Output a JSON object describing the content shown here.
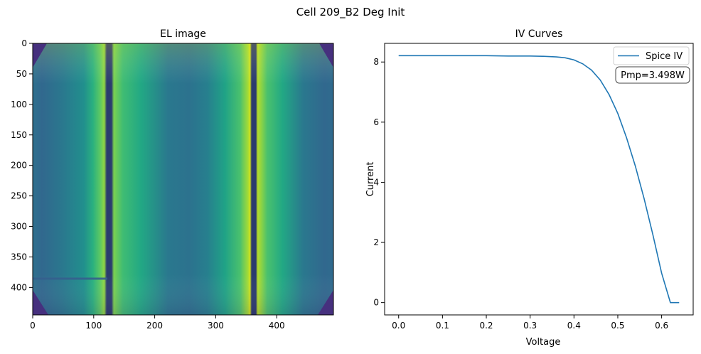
{
  "figure": {
    "title": "Cell 209_B2 Deg Init"
  },
  "chart_data": [
    {
      "type": "heatmap",
      "title": "EL image",
      "xlabel": "",
      "ylabel": "",
      "xlim": [
        0,
        493
      ],
      "ylim": [
        445,
        0
      ],
      "x_ticks": [
        0,
        100,
        200,
        300,
        400
      ],
      "y_ticks": [
        0,
        50,
        100,
        150,
        200,
        250,
        300,
        350,
        400
      ],
      "colormap": "viridis",
      "bright_stripes_x": [
        123,
        363
      ],
      "dark_busbars_x": [
        126,
        362
      ],
      "dark_line": {
        "x": [
          0,
          122
        ],
        "y": 385
      }
    },
    {
      "type": "line",
      "title": "IV Curves",
      "xlabel": "Voltage",
      "ylabel": "Current",
      "xlim": [
        -0.032,
        0.672
      ],
      "ylim": [
        -0.41,
        8.62
      ],
      "x_ticks": [
        0.0,
        0.1,
        0.2,
        0.3,
        0.4,
        0.5,
        0.6
      ],
      "x_tick_labels": [
        "0.0",
        "0.1",
        "0.2",
        "0.3",
        "0.4",
        "0.5",
        "0.6"
      ],
      "y_ticks": [
        0,
        2,
        4,
        6,
        8
      ],
      "y_tick_labels": [
        "0",
        "2",
        "4",
        "6",
        "8"
      ],
      "legend": "top-right",
      "series": [
        {
          "name": "Spice IV",
          "color": "#1f77b4",
          "x": [
            0.0,
            0.05,
            0.1,
            0.15,
            0.2,
            0.25,
            0.3,
            0.33,
            0.36,
            0.38,
            0.4,
            0.42,
            0.44,
            0.46,
            0.48,
            0.5,
            0.52,
            0.54,
            0.56,
            0.58,
            0.6,
            0.62,
            0.64
          ],
          "y": [
            8.21,
            8.21,
            8.21,
            8.21,
            8.21,
            8.2,
            8.2,
            8.19,
            8.17,
            8.14,
            8.07,
            7.94,
            7.73,
            7.4,
            6.92,
            6.29,
            5.48,
            4.54,
            3.46,
            2.26,
            0.98,
            0.0,
            0.0
          ]
        }
      ],
      "annotation": {
        "text": "Pmp=3.498W",
        "position": "top-right"
      }
    }
  ]
}
